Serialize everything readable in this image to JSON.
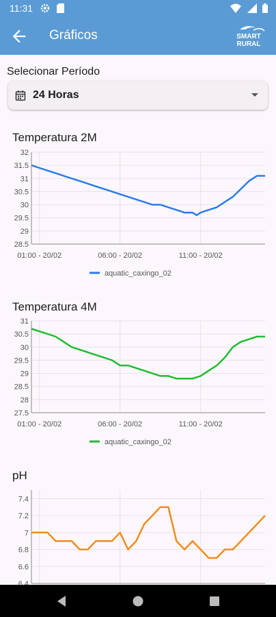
{
  "status_bar": {
    "time": "11:31"
  },
  "app_bar": {
    "title": "Gráficos",
    "logo_line1": "SMART",
    "logo_line2": "RURAL"
  },
  "period": {
    "label": "Selecionar Período",
    "value": "24 Horas"
  },
  "charts": [
    {
      "title": "Temperatura 2M",
      "legend": "aquatic_caxingo_02",
      "color": "#2c7be5",
      "ylim": [
        28.5,
        32
      ],
      "yticks": [
        "32",
        "31.5",
        "31",
        "30.5",
        "30",
        "29.5",
        "29",
        "28.5"
      ],
      "xticks": [
        "01:00 - 20/02",
        "06:00 - 20/02",
        "11:00 - 20/02"
      ]
    },
    {
      "title": "Temperatura 4M",
      "legend": "aquatic_caxingo_02",
      "color": "#22bb33",
      "ylim": [
        27.5,
        31
      ],
      "yticks": [
        "31",
        "30.5",
        "30",
        "29.5",
        "29",
        "28.5",
        "28",
        "27.5"
      ],
      "xticks": [
        "01:00 - 20/02",
        "06:00 - 20/02",
        "11:00 - 20/02"
      ]
    },
    {
      "title": "pH",
      "color": "#f28c1c",
      "ylim": [
        6.4,
        7.5
      ],
      "yticks": [
        "7.4",
        "7.2",
        "7",
        "6.8",
        "6.6",
        "6.4"
      ]
    }
  ],
  "chart_data": [
    {
      "type": "line",
      "title": "Temperatura 2M",
      "x": [
        "00:30",
        "01:00",
        "01:30",
        "02:00",
        "02:30",
        "03:00",
        "03:30",
        "04:00",
        "04:30",
        "05:00",
        "05:30",
        "06:00",
        "06:30",
        "07:00",
        "07:30",
        "08:00",
        "08:30",
        "09:00",
        "09:30",
        "10:00",
        "10:30",
        "10:45",
        "11:00",
        "11:30",
        "12:00",
        "12:30",
        "13:00",
        "13:30",
        "14:00",
        "14:30",
        "15:00"
      ],
      "series": [
        {
          "name": "aquatic_caxingo_02",
          "values": [
            31.5,
            31.4,
            31.3,
            31.2,
            31.1,
            31.0,
            30.9,
            30.8,
            30.7,
            30.6,
            30.5,
            30.4,
            30.3,
            30.2,
            30.1,
            30.0,
            30.0,
            29.9,
            29.8,
            29.7,
            29.7,
            29.6,
            29.7,
            29.8,
            29.9,
            30.1,
            30.3,
            30.6,
            30.9,
            31.1,
            31.1
          ]
        }
      ],
      "xticks": [
        "01:00 - 20/02",
        "06:00 - 20/02",
        "11:00 - 20/02"
      ],
      "ylim": [
        28.5,
        32
      ],
      "legend": "bottom-center",
      "grid": true
    },
    {
      "type": "line",
      "title": "Temperatura 4M",
      "x": [
        "00:30",
        "01:00",
        "01:30",
        "02:00",
        "02:30",
        "03:00",
        "03:30",
        "04:00",
        "04:30",
        "05:00",
        "05:30",
        "06:00",
        "06:30",
        "07:00",
        "07:30",
        "08:00",
        "08:30",
        "09:00",
        "09:30",
        "10:00",
        "10:30",
        "11:00",
        "11:30",
        "12:00",
        "12:30",
        "13:00",
        "13:30",
        "14:00",
        "14:30",
        "15:00"
      ],
      "series": [
        {
          "name": "aquatic_caxingo_02",
          "values": [
            30.7,
            30.6,
            30.5,
            30.4,
            30.2,
            30.0,
            29.9,
            29.8,
            29.7,
            29.6,
            29.5,
            29.3,
            29.3,
            29.2,
            29.1,
            29.0,
            28.9,
            28.9,
            28.8,
            28.8,
            28.8,
            28.9,
            29.1,
            29.3,
            29.6,
            30.0,
            30.2,
            30.3,
            30.4,
            30.4
          ]
        }
      ],
      "xticks": [
        "01:00 - 20/02",
        "06:00 - 20/02",
        "11:00 - 20/02"
      ],
      "ylim": [
        27.5,
        31
      ],
      "legend": "bottom-center",
      "grid": true
    },
    {
      "type": "line",
      "title": "pH",
      "x": [
        "00:30",
        "01:00",
        "01:30",
        "02:00",
        "02:30",
        "03:00",
        "03:30",
        "04:00",
        "04:30",
        "05:00",
        "05:30",
        "06:00",
        "06:30",
        "07:00",
        "07:30",
        "08:00",
        "08:30",
        "09:00",
        "09:30",
        "10:00",
        "10:30",
        "11:00",
        "11:30",
        "12:00",
        "12:30",
        "13:00",
        "13:30",
        "14:00",
        "14:30",
        "15:00"
      ],
      "series": [
        {
          "name": "aquatic_caxingo_02",
          "values": [
            7.0,
            7.0,
            7.0,
            6.9,
            6.9,
            6.9,
            6.8,
            6.8,
            6.9,
            6.9,
            6.9,
            7.0,
            6.8,
            6.9,
            7.1,
            7.2,
            7.3,
            7.3,
            6.9,
            6.8,
            6.9,
            6.8,
            6.7,
            6.7,
            6.8,
            6.8,
            6.9,
            7.0,
            7.1,
            7.2
          ]
        }
      ],
      "ylim": [
        6.4,
        7.5
      ],
      "grid": true
    }
  ]
}
